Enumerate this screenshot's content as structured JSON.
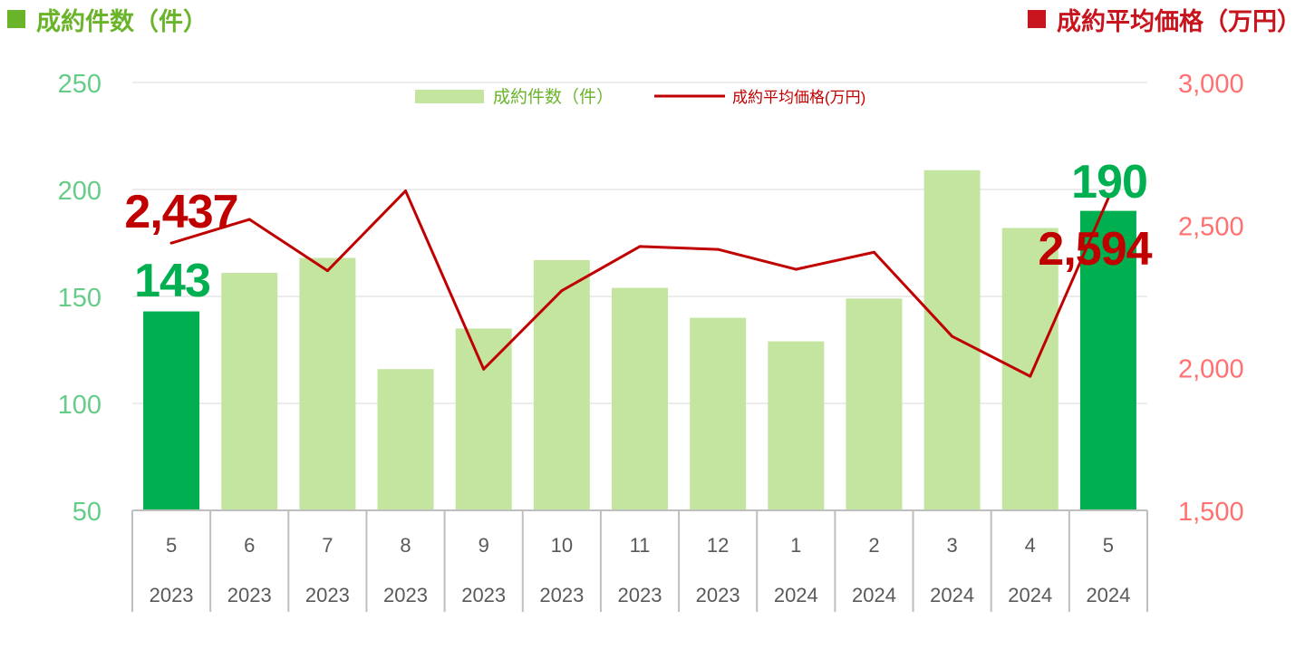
{
  "header": {
    "left_label": "成約件数（件）",
    "right_label": "成約平均価格（万円）"
  },
  "chart_data": {
    "type": "bar",
    "categories": [
      {
        "month": "5",
        "year": "2023"
      },
      {
        "month": "6",
        "year": "2023"
      },
      {
        "month": "7",
        "year": "2023"
      },
      {
        "month": "8",
        "year": "2023"
      },
      {
        "month": "9",
        "year": "2023"
      },
      {
        "month": "10",
        "year": "2023"
      },
      {
        "month": "11",
        "year": "2023"
      },
      {
        "month": "12",
        "year": "2023"
      },
      {
        "month": "1",
        "year": "2024"
      },
      {
        "month": "2",
        "year": "2024"
      },
      {
        "month": "3",
        "year": "2024"
      },
      {
        "month": "4",
        "year": "2024"
      },
      {
        "month": "5",
        "year": "2024"
      }
    ],
    "series": [
      {
        "name": "成約件数（件）",
        "type": "bar",
        "axis": "left",
        "values": [
          143,
          161,
          168,
          116,
          135,
          167,
          154,
          140,
          129,
          149,
          209,
          182,
          190
        ],
        "highlight_indices": [
          0,
          12
        ],
        "color": "#c3e59f",
        "highlight_color": "#00b050"
      },
      {
        "name": "成約平均価格(万円)",
        "type": "line",
        "axis": "right",
        "values": [
          2437,
          2520,
          2340,
          2620,
          1995,
          2270,
          2425,
          2415,
          2345,
          2405,
          2110,
          1970,
          2594
        ],
        "color": "#c00000"
      }
    ],
    "left_axis": {
      "ylim": [
        50,
        250
      ],
      "ticks": [
        "50",
        "100",
        "150",
        "200",
        "250"
      ],
      "tick_values": [
        50,
        100,
        150,
        200,
        250
      ],
      "color": "#66cc88"
    },
    "right_axis": {
      "ylim": [
        1500,
        3000
      ],
      "ticks": [
        "1,500",
        "2,000",
        "2,500",
        "3,000"
      ],
      "tick_values": [
        1500,
        2000,
        2500,
        3000
      ],
      "color": "#ff7070"
    },
    "annotations": [
      {
        "text": "143",
        "series": 0,
        "index": 0,
        "color": "#00b050"
      },
      {
        "text": "2,437",
        "series": 1,
        "index": 0,
        "color": "#c00000"
      },
      {
        "text": "190",
        "series": 0,
        "index": 12,
        "color": "#00b050"
      },
      {
        "text": "2,594",
        "series": 1,
        "index": 12,
        "color": "#c00000"
      }
    ],
    "legend_position": "top-center",
    "grid": true
  }
}
